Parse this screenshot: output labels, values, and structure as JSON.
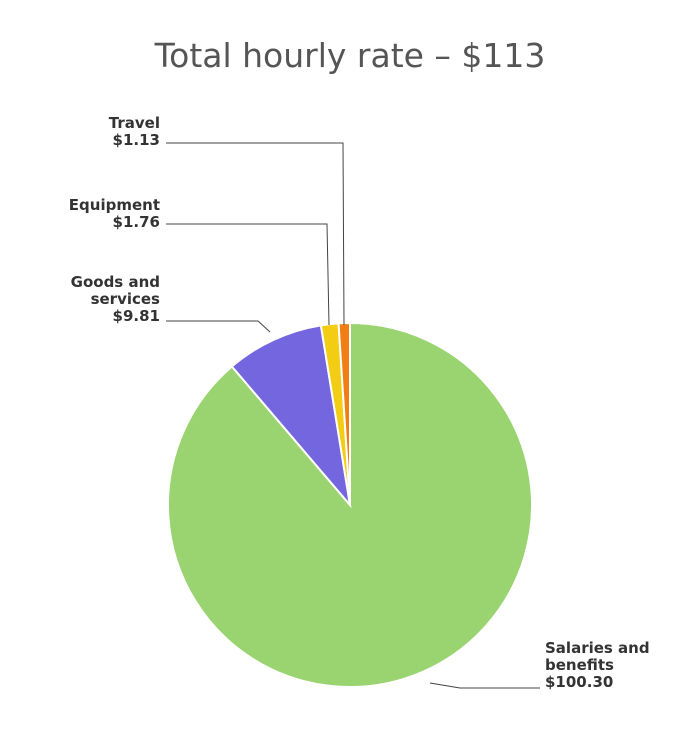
{
  "chart_data": {
    "type": "pie",
    "title": "Total hourly rate – $113",
    "slices": [
      {
        "label_lines": [
          "Salaries and",
          "benefits"
        ],
        "value_label": "$100.30",
        "value": 100.3,
        "color": "#9ad470"
      },
      {
        "label_lines": [
          "Goods and",
          "services"
        ],
        "value_label": "$9.81",
        "value": 9.81,
        "color": "#7466de"
      },
      {
        "label_lines": [
          "Equipment"
        ],
        "value_label": "$1.76",
        "value": 1.76,
        "color": "#f2cd13"
      },
      {
        "label_lines": [
          "Travel"
        ],
        "value_label": "$1.13",
        "value": 1.13,
        "color": "#f07e14"
      }
    ]
  }
}
